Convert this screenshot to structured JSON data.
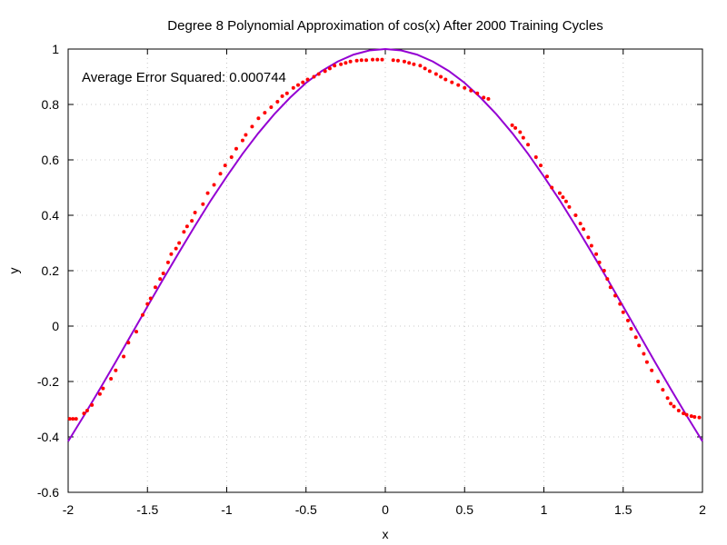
{
  "chart_data": {
    "type": "scatter",
    "title": "Degree 8 Polynomial Approximation of cos(x) After 2000 Training Cycles",
    "xlabel": "x",
    "ylabel": "y",
    "xlim": [
      -2,
      2
    ],
    "ylim": [
      -0.6,
      1
    ],
    "x_ticks": [
      -2,
      -1.5,
      -1,
      -0.5,
      0,
      0.5,
      1,
      1.5,
      2
    ],
    "x_tick_labels": [
      "-2",
      "-1.5",
      "-1",
      "-0.5",
      "0",
      "0.5",
      "1",
      "1.5",
      "2"
    ],
    "y_ticks": [
      -0.6,
      -0.4,
      -0.2,
      0,
      0.2,
      0.4,
      0.6,
      0.8,
      1
    ],
    "y_tick_labels": [
      "-0.6",
      "-0.4",
      "-0.2",
      "0",
      "0.2",
      "0.4",
      "0.6",
      "0.8",
      "1"
    ],
    "grid": true,
    "annotation": "Average Error Squared: 0.000744",
    "colors": {
      "points": "#ff0000",
      "curve": "#9400d3",
      "grid": "#c8c8c8"
    },
    "series": [
      {
        "kind": "line",
        "function": "cos(x)",
        "x": [
          -2.0,
          -1.9,
          -1.8,
          -1.7,
          -1.6,
          -1.5,
          -1.4,
          -1.3,
          -1.2,
          -1.1,
          -1.0,
          -0.9,
          -0.8,
          -0.7,
          -0.6,
          -0.5,
          -0.4,
          -0.3,
          -0.2,
          -0.1,
          0.0,
          0.1,
          0.2,
          0.3,
          0.4,
          0.5,
          0.6,
          0.7,
          0.8,
          0.9,
          1.0,
          1.1,
          1.2,
          1.3,
          1.4,
          1.5,
          1.6,
          1.7,
          1.8,
          1.9,
          2.0
        ],
        "y": [
          -0.416,
          -0.323,
          -0.227,
          -0.129,
          -0.029,
          0.071,
          0.17,
          0.267,
          0.362,
          0.454,
          0.54,
          0.622,
          0.697,
          0.765,
          0.825,
          0.878,
          0.921,
          0.955,
          0.98,
          0.995,
          1.0,
          0.995,
          0.98,
          0.955,
          0.921,
          0.878,
          0.825,
          0.765,
          0.697,
          0.622,
          0.54,
          0.454,
          0.362,
          0.267,
          0.17,
          0.071,
          -0.029,
          -0.129,
          -0.227,
          -0.323,
          -0.416
        ]
      },
      {
        "kind": "points",
        "x": [
          -1.99,
          -1.97,
          -1.95,
          -1.9,
          -1.88,
          -1.85,
          -1.8,
          -1.78,
          -1.73,
          -1.7,
          -1.65,
          -1.62,
          -1.57,
          -1.53,
          -1.5,
          -1.48,
          -1.45,
          -1.42,
          -1.4,
          -1.37,
          -1.35,
          -1.32,
          -1.3,
          -1.27,
          -1.25,
          -1.22,
          -1.2,
          -1.15,
          -1.12,
          -1.08,
          -1.04,
          -1.01,
          -0.97,
          -0.94,
          -0.9,
          -0.88,
          -0.84,
          -0.8,
          -0.76,
          -0.72,
          -0.68,
          -0.65,
          -0.62,
          -0.58,
          -0.55,
          -0.52,
          -0.49,
          -0.45,
          -0.42,
          -0.38,
          -0.35,
          -0.32,
          -0.28,
          -0.25,
          -0.22,
          -0.18,
          -0.15,
          -0.12,
          -0.08,
          -0.05,
          -0.02,
          0.05,
          0.08,
          0.12,
          0.15,
          0.18,
          0.22,
          0.25,
          0.28,
          0.32,
          0.35,
          0.38,
          0.42,
          0.46,
          0.5,
          0.54,
          0.58,
          0.62,
          0.65,
          0.8,
          0.82,
          0.85,
          0.87,
          0.9,
          0.95,
          0.98,
          1.02,
          1.05,
          1.1,
          1.12,
          1.14,
          1.16,
          1.2,
          1.23,
          1.25,
          1.28,
          1.3,
          1.33,
          1.35,
          1.38,
          1.4,
          1.42,
          1.45,
          1.48,
          1.5,
          1.53,
          1.55,
          1.58,
          1.6,
          1.63,
          1.65,
          1.68,
          1.72,
          1.75,
          1.78,
          1.8,
          1.82,
          1.85,
          1.88,
          1.9,
          1.93,
          1.95,
          1.98
        ],
        "y": [
          -0.335,
          -0.335,
          -0.335,
          -0.315,
          -0.305,
          -0.285,
          -0.245,
          -0.225,
          -0.19,
          -0.16,
          -0.11,
          -0.06,
          -0.02,
          0.04,
          0.08,
          0.1,
          0.14,
          0.17,
          0.19,
          0.23,
          0.26,
          0.28,
          0.3,
          0.34,
          0.36,
          0.38,
          0.41,
          0.44,
          0.48,
          0.51,
          0.55,
          0.58,
          0.61,
          0.64,
          0.67,
          0.69,
          0.72,
          0.75,
          0.77,
          0.79,
          0.81,
          0.83,
          0.84,
          0.86,
          0.87,
          0.88,
          0.89,
          0.9,
          0.91,
          0.92,
          0.93,
          0.94,
          0.945,
          0.95,
          0.955,
          0.958,
          0.96,
          0.96,
          0.962,
          0.962,
          0.962,
          0.96,
          0.958,
          0.955,
          0.95,
          0.945,
          0.94,
          0.93,
          0.92,
          0.91,
          0.9,
          0.89,
          0.88,
          0.87,
          0.86,
          0.85,
          0.84,
          0.825,
          0.82,
          0.725,
          0.715,
          0.7,
          0.68,
          0.655,
          0.61,
          0.58,
          0.54,
          0.5,
          0.48,
          0.465,
          0.45,
          0.43,
          0.4,
          0.37,
          0.35,
          0.32,
          0.29,
          0.26,
          0.23,
          0.2,
          0.17,
          0.14,
          0.11,
          0.08,
          0.05,
          0.02,
          -0.01,
          -0.04,
          -0.07,
          -0.1,
          -0.13,
          -0.16,
          -0.2,
          -0.23,
          -0.26,
          -0.28,
          -0.29,
          -0.305,
          -0.315,
          -0.32,
          -0.325,
          -0.328,
          -0.33
        ]
      }
    ]
  }
}
